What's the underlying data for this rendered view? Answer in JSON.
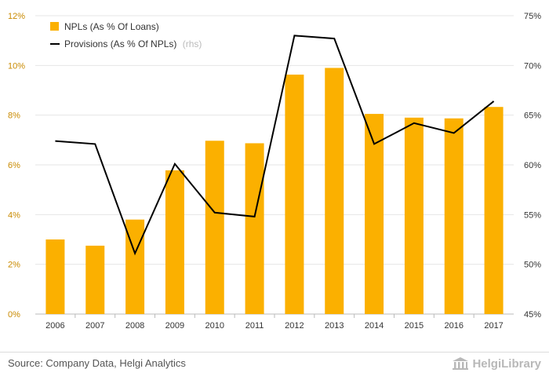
{
  "chart_data": {
    "type": "bar",
    "categories": [
      "2006",
      "2007",
      "2008",
      "2009",
      "2010",
      "2011",
      "2012",
      "2013",
      "2014",
      "2015",
      "2016",
      "2017"
    ],
    "series": [
      {
        "name": "NPLs (As % Of Loans)",
        "type": "bar",
        "axis": "left",
        "values": [
          3.0,
          2.75,
          3.8,
          5.78,
          6.97,
          6.87,
          9.63,
          9.9,
          8.05,
          7.9,
          7.87,
          8.33
        ]
      },
      {
        "name": "Provisions (As % Of NPLs)",
        "name_suffix": "(rhs)",
        "type": "line",
        "axis": "right",
        "values": [
          62.4,
          62.1,
          51.1,
          60.1,
          55.2,
          54.8,
          73.0,
          72.7,
          62.1,
          64.2,
          63.2,
          66.4
        ]
      }
    ],
    "y_left": {
      "ylim": [
        0,
        12
      ],
      "ticks": [
        "0%",
        "2%",
        "4%",
        "6%",
        "8%",
        "10%",
        "12%"
      ]
    },
    "y_right": {
      "ylim": [
        45,
        75
      ],
      "ticks": [
        "45%",
        "50%",
        "55%",
        "60%",
        "65%",
        "70%",
        "75%"
      ]
    },
    "legend_position": "top-left",
    "grid": "horizontal",
    "colors": {
      "bar": "#fbb000",
      "line": "#000000",
      "grid": "#e6e6e6",
      "left_tick": "#c98a00"
    }
  },
  "footer": {
    "source": "Source: Company Data, Helgi Analytics",
    "logo_text": "HelgiLibrary",
    "logo_icon": "building-icon"
  }
}
